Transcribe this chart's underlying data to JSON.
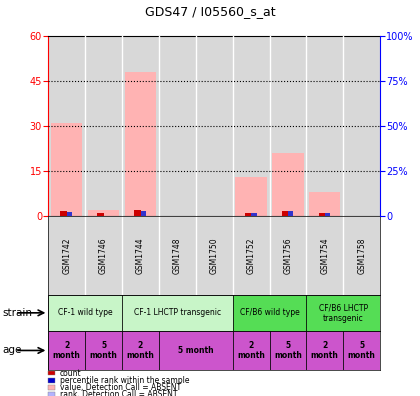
{
  "title": "GDS47 / I05560_s_at",
  "samples": [
    "GSM1742",
    "GSM1746",
    "GSM1744",
    "GSM1748",
    "GSM1750",
    "GSM1752",
    "GSM1756",
    "GSM1754",
    "GSM1758"
  ],
  "pink_bars": [
    31,
    2,
    48,
    0,
    0,
    13,
    21,
    8,
    0
  ],
  "red_bars": [
    1.5,
    0.8,
    2.0,
    0,
    0,
    0.8,
    1.5,
    0.8,
    0
  ],
  "blue_bars": [
    1.2,
    0,
    1.5,
    0,
    0,
    0.8,
    1.5,
    0.8,
    0
  ],
  "left_ylim": [
    0,
    60
  ],
  "left_yticks": [
    0,
    15,
    30,
    45,
    60
  ],
  "right_yticks": [
    0,
    25,
    50,
    75,
    100
  ],
  "right_ylabels": [
    "0",
    "25%",
    "50%",
    "75%",
    "100%"
  ],
  "strains": [
    {
      "label": "CF-1 wild type",
      "span": [
        0,
        2
      ],
      "color": "#c8f5c8"
    },
    {
      "label": "CF-1 LHCTP transgenic",
      "span": [
        2,
        5
      ],
      "color": "#c8f5c8"
    },
    {
      "label": "CF/B6 wild type",
      "span": [
        5,
        7
      ],
      "color": "#55dd55"
    },
    {
      "label": "CF/B6 LHCTP\ntransgenic",
      "span": [
        7,
        9
      ],
      "color": "#55dd55"
    }
  ],
  "ages": [
    {
      "label": "2\nmonth",
      "span": [
        0,
        1
      ],
      "color": "#cc55cc"
    },
    {
      "label": "5\nmonth",
      "span": [
        1,
        2
      ],
      "color": "#cc55cc"
    },
    {
      "label": "2\nmonth",
      "span": [
        2,
        3
      ],
      "color": "#cc55cc"
    },
    {
      "label": "5 month",
      "span": [
        3,
        5
      ],
      "color": "#cc55cc"
    },
    {
      "label": "2\nmonth",
      "span": [
        5,
        6
      ],
      "color": "#cc55cc"
    },
    {
      "label": "5\nmonth",
      "span": [
        6,
        7
      ],
      "color": "#cc55cc"
    },
    {
      "label": "2\nmonth",
      "span": [
        7,
        8
      ],
      "color": "#cc55cc"
    },
    {
      "label": "5\nmonth",
      "span": [
        8,
        9
      ],
      "color": "#cc55cc"
    }
  ],
  "legend_items": [
    {
      "color": "#cc0000",
      "label": "count"
    },
    {
      "color": "#0000cc",
      "label": "percentile rank within the sample"
    },
    {
      "color": "#ffb3b3",
      "label": "value, Detection Call = ABSENT"
    },
    {
      "color": "#b3b3ff",
      "label": "rank, Detection Call = ABSENT"
    }
  ],
  "bg_color": "#ffffff",
  "bar_bg": "#d8d8d8"
}
